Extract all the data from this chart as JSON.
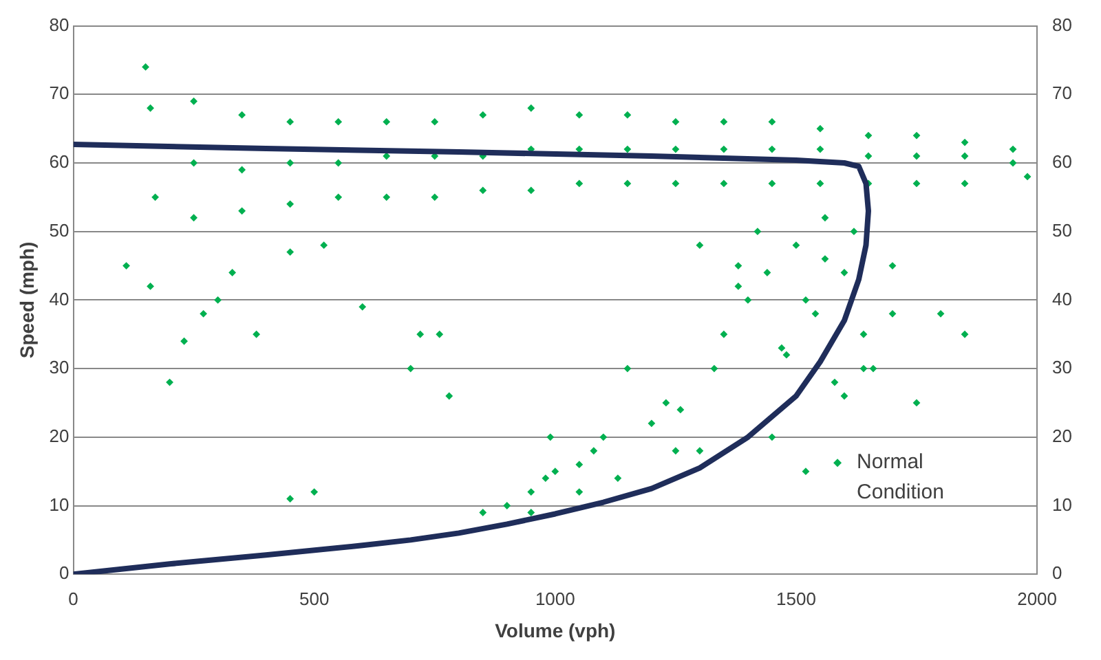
{
  "chart_data": {
    "type": "scatter",
    "xlabel": "Volume (vph)",
    "ylabel": "Speed (mph)",
    "xlim": [
      0,
      2000
    ],
    "xticks": [
      0,
      500,
      1000,
      1500,
      2000
    ],
    "ylim": [
      0,
      80
    ],
    "yticks": [
      0,
      10,
      20,
      30,
      40,
      50,
      60,
      70,
      80
    ],
    "y2lim": [
      0,
      80
    ],
    "y2ticks": [
      0,
      10,
      20,
      30,
      40,
      50,
      60,
      70,
      80
    ],
    "grid": "y",
    "legend": "bottom right",
    "marker": "diamond",
    "series": [
      {
        "name": "Normal Condition",
        "color": "#00b050",
        "x": [
          150,
          160,
          170,
          250,
          250,
          250,
          350,
          350,
          350,
          450,
          450,
          450,
          550,
          550,
          550,
          650,
          650,
          650,
          750,
          750,
          750,
          850,
          850,
          850,
          950,
          950,
          950,
          1050,
          1050,
          1050,
          1150,
          1150,
          1150,
          1250,
          1250,
          1250,
          1350,
          1350,
          1350,
          1450,
          1450,
          1450,
          1550,
          1550,
          1550,
          1650,
          1650,
          1650,
          1750,
          1750,
          1750,
          1850,
          1850,
          1850,
          1950,
          1950,
          1980,
          160,
          200,
          230,
          270,
          300,
          330,
          110,
          380,
          450,
          520,
          600,
          700,
          760,
          780,
          850,
          900,
          950,
          980,
          1000,
          1050,
          1080,
          1100,
          1150,
          1200,
          1230,
          1260,
          1300,
          1330,
          1350,
          1380,
          1400,
          1420,
          1450,
          1470,
          1500,
          1520,
          1540,
          1560,
          1580,
          1600,
          1620,
          1640,
          1660,
          1700,
          1750,
          1800,
          1850,
          1480,
          1440,
          1560,
          1600,
          1520,
          1380,
          1640,
          1700,
          1300,
          1250,
          1130,
          1050,
          990,
          450,
          500,
          950,
          720
        ],
        "values": [
          74,
          68,
          55,
          69,
          60,
          52,
          67,
          59,
          53,
          66,
          60,
          54,
          66,
          60,
          55,
          66,
          61,
          55,
          66,
          61,
          55,
          67,
          61,
          56,
          68,
          62,
          56,
          67,
          62,
          57,
          67,
          62,
          57,
          66,
          62,
          57,
          66,
          62,
          57,
          66,
          62,
          57,
          65,
          62,
          57,
          64,
          61,
          57,
          64,
          61,
          57,
          63,
          61,
          57,
          62,
          60,
          58,
          42,
          28,
          34,
          38,
          40,
          44,
          45,
          35,
          47,
          48,
          39,
          30,
          35,
          26,
          9,
          10,
          12,
          14,
          15,
          16,
          18,
          20,
          30,
          22,
          25,
          24,
          18,
          30,
          35,
          45,
          40,
          50,
          20,
          33,
          48,
          15,
          38,
          46,
          28,
          44,
          50,
          35,
          30,
          45,
          25,
          38,
          35,
          32,
          44,
          52,
          26,
          40,
          42,
          30,
          38,
          48,
          18,
          14,
          12,
          20,
          11,
          12,
          9,
          35
        ]
      },
      {
        "type": "line",
        "marker": "none",
        "color": "#1f2d5a",
        "x": [
          0,
          400,
          800,
          1200,
          1500,
          1600,
          1630,
          1645,
          1650,
          1645,
          1630,
          1600,
          1550,
          1500,
          1400,
          1300,
          1200,
          1100,
          1000,
          900,
          800,
          700,
          600,
          400,
          200,
          0
        ],
        "values": [
          62.7,
          62.1,
          61.6,
          61,
          60.4,
          60,
          59.5,
          57,
          53,
          48,
          43,
          37,
          31,
          26,
          20,
          15.5,
          12.5,
          10.5,
          8.8,
          7.3,
          6,
          5,
          4.2,
          2.8,
          1.5,
          0
        ]
      }
    ]
  }
}
